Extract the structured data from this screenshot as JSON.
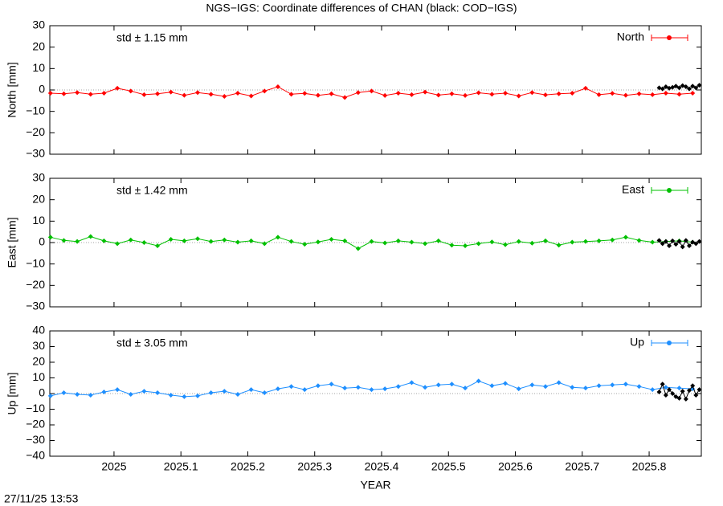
{
  "timestamp": "27/11/25 13:53",
  "chart_data": [
    {
      "type": "line",
      "title": "NGS−IGS: Coordinate differences of CHAN (black: COD−IGS)",
      "ylabel": "North [mm]",
      "annotation": "std ± 1.15 mm",
      "legend": "top-right",
      "zero_line": true,
      "xlim": [
        2024.904,
        2025.878
      ],
      "xticks": [
        2025,
        2025.1,
        2025.2,
        2025.3,
        2025.4,
        2025.5,
        2025.6,
        2025.7,
        2025.8
      ],
      "ylim": [
        -30,
        30
      ],
      "yticks": [
        {
          "value": -30,
          "label": "−30"
        },
        {
          "value": -20,
          "label": "−20"
        },
        {
          "value": -10,
          "label": "−10"
        },
        0,
        10,
        20,
        30
      ],
      "x": [
        2024.905,
        2024.925,
        2024.945,
        2024.965,
        2024.985,
        2025.005,
        2025.025,
        2025.045,
        2025.065,
        2025.085,
        2025.105,
        2025.125,
        2025.145,
        2025.165,
        2025.185,
        2025.205,
        2025.225,
        2025.245,
        2025.265,
        2025.285,
        2025.305,
        2025.325,
        2025.345,
        2025.365,
        2025.385,
        2025.405,
        2025.425,
        2025.445,
        2025.465,
        2025.485,
        2025.505,
        2025.525,
        2025.545,
        2025.565,
        2025.585,
        2025.605,
        2025.625,
        2025.645,
        2025.665,
        2025.685,
        2025.705,
        2025.725,
        2025.745,
        2025.765,
        2025.785,
        2025.805,
        2025.825,
        2025.845,
        2025.865
      ],
      "series": [
        {
          "name": "North",
          "color": "#ff0000",
          "values": [
            -1.5,
            -1.8,
            -1.2,
            -2,
            -1.5,
            0.8,
            -0.5,
            -2.2,
            -1.8,
            -1,
            -2.5,
            -1.2,
            -2,
            -3,
            -1.5,
            -2.8,
            -0.5,
            1.5,
            -2,
            -1.6,
            -2.5,
            -1.8,
            -3.5,
            -1.2,
            -0.5,
            -2.6,
            -1.5,
            -2.2,
            -1,
            -2.4,
            -1.8,
            -2.6,
            -1.3,
            -2,
            -1.5,
            -2.8,
            -1.2,
            -2.3,
            -1.8,
            -1.5,
            0.8,
            -2.2,
            -1.6,
            -2.5,
            -1.8,
            -2.2,
            -1.5,
            -2,
            -1.5
          ]
        },
        {
          "color": "#000000",
          "x": [
            2025.815,
            2025.82,
            2025.825,
            2025.83,
            2025.835,
            2025.84,
            2025.845,
            2025.85,
            2025.855,
            2025.86,
            2025.865,
            2025.87,
            2025.875
          ],
          "values": [
            1,
            0.5,
            1.5,
            0.8,
            1.2,
            1.8,
            1,
            2,
            1.5,
            0.5,
            1.8,
            1,
            2.2
          ]
        }
      ]
    },
    {
      "type": "line",
      "ylabel": "East [mm]",
      "annotation": "std ± 1.42 mm",
      "legend": "top-right",
      "zero_line": true,
      "xlim": [
        2024.904,
        2025.878
      ],
      "xticks": [
        2025,
        2025.1,
        2025.2,
        2025.3,
        2025.4,
        2025.5,
        2025.6,
        2025.7,
        2025.8
      ],
      "ylim": [
        -30,
        30
      ],
      "yticks": [
        {
          "value": -30,
          "label": "−30"
        },
        {
          "value": -20,
          "label": "−20"
        },
        {
          "value": -10,
          "label": "−10"
        },
        0,
        10,
        20,
        30
      ],
      "x": [
        2024.905,
        2024.925,
        2024.945,
        2024.965,
        2024.985,
        2025.005,
        2025.025,
        2025.045,
        2025.065,
        2025.085,
        2025.105,
        2025.125,
        2025.145,
        2025.165,
        2025.185,
        2025.205,
        2025.225,
        2025.245,
        2025.265,
        2025.285,
        2025.305,
        2025.325,
        2025.345,
        2025.365,
        2025.385,
        2025.405,
        2025.425,
        2025.445,
        2025.465,
        2025.485,
        2025.505,
        2025.525,
        2025.545,
        2025.565,
        2025.585,
        2025.605,
        2025.625,
        2025.645,
        2025.665,
        2025.685,
        2025.705,
        2025.725,
        2025.745,
        2025.765,
        2025.785,
        2025.805,
        2025.825,
        2025.845,
        2025.865
      ],
      "series": [
        {
          "name": "East",
          "color": "#00c000",
          "values": [
            2.5,
            1,
            0.5,
            2.8,
            0.8,
            -0.5,
            1.2,
            0,
            -1.5,
            1.5,
            0.8,
            1.8,
            0.5,
            1.2,
            0.2,
            0.8,
            -0.5,
            2.5,
            0.5,
            -0.8,
            0.3,
            1.5,
            0.8,
            -2.8,
            0.5,
            -0.2,
            0.8,
            0.2,
            -0.5,
            0.8,
            -1.2,
            -1.5,
            -0.5,
            0.3,
            -1,
            0.5,
            -0.3,
            0.8,
            -1.2,
            0.2,
            0.5,
            0.8,
            1.2,
            2.5,
            1,
            0.2,
            0.5,
            0.8,
            0.2
          ]
        },
        {
          "color": "#000000",
          "x": [
            2025.815,
            2025.82,
            2025.825,
            2025.83,
            2025.835,
            2025.84,
            2025.845,
            2025.85,
            2025.855,
            2025.86,
            2025.865,
            2025.87,
            2025.875
          ],
          "values": [
            1,
            -0.5,
            0.5,
            -1.5,
            0.8,
            -0.8,
            0.5,
            -2,
            1,
            -1.5,
            0.2,
            -0.5,
            0.5
          ]
        }
      ]
    },
    {
      "type": "line",
      "ylabel": "Up [mm]",
      "xlabel": "YEAR",
      "annotation": "std ± 3.05 mm",
      "legend": "top-right",
      "zero_line": true,
      "xlim": [
        2024.904,
        2025.878
      ],
      "xticks": [
        2025,
        2025.1,
        2025.2,
        2025.3,
        2025.4,
        2025.5,
        2025.6,
        2025.7,
        2025.8
      ],
      "ylim": [
        -40,
        40
      ],
      "yticks": [
        {
          "value": -40,
          "label": "−40"
        },
        {
          "value": -30,
          "label": "−30"
        },
        {
          "value": -20,
          "label": "−20"
        },
        {
          "value": -10,
          "label": "−10"
        },
        0,
        10,
        20,
        30,
        40
      ],
      "x": [
        2024.905,
        2024.925,
        2024.945,
        2024.965,
        2024.985,
        2025.005,
        2025.025,
        2025.045,
        2025.065,
        2025.085,
        2025.105,
        2025.125,
        2025.145,
        2025.165,
        2025.185,
        2025.205,
        2025.225,
        2025.245,
        2025.265,
        2025.285,
        2025.305,
        2025.325,
        2025.345,
        2025.365,
        2025.385,
        2025.405,
        2025.425,
        2025.445,
        2025.465,
        2025.485,
        2025.505,
        2025.525,
        2025.545,
        2025.565,
        2025.585,
        2025.605,
        2025.625,
        2025.645,
        2025.665,
        2025.685,
        2025.705,
        2025.725,
        2025.745,
        2025.765,
        2025.785,
        2025.805,
        2025.825,
        2025.845,
        2025.865
      ],
      "series": [
        {
          "name": "Up",
          "color": "#1e8fff",
          "values": [
            -1.5,
            0.5,
            -0.5,
            -1,
            1,
            2.5,
            -0.5,
            1.5,
            0.5,
            -1,
            -2,
            -1.5,
            0.5,
            1.5,
            -0.5,
            2.5,
            0.5,
            3,
            4.5,
            2.5,
            5,
            6,
            3.5,
            4,
            2.5,
            3,
            4.5,
            7,
            4,
            5.5,
            6,
            3.5,
            8,
            5,
            6.5,
            3,
            5.5,
            4.5,
            7,
            4,
            3.5,
            5,
            5.5,
            6,
            4.5,
            2.5,
            4,
            3.5,
            3
          ]
        },
        {
          "color": "#000000",
          "x": [
            2025.815,
            2025.82,
            2025.825,
            2025.83,
            2025.835,
            2025.84,
            2025.845,
            2025.85,
            2025.855,
            2025.86,
            2025.865,
            2025.87,
            2025.875
          ],
          "values": [
            1,
            6,
            -1,
            2.5,
            0,
            -2,
            -3,
            1.5,
            -3.5,
            2,
            5,
            -1,
            2.5
          ]
        }
      ]
    }
  ]
}
